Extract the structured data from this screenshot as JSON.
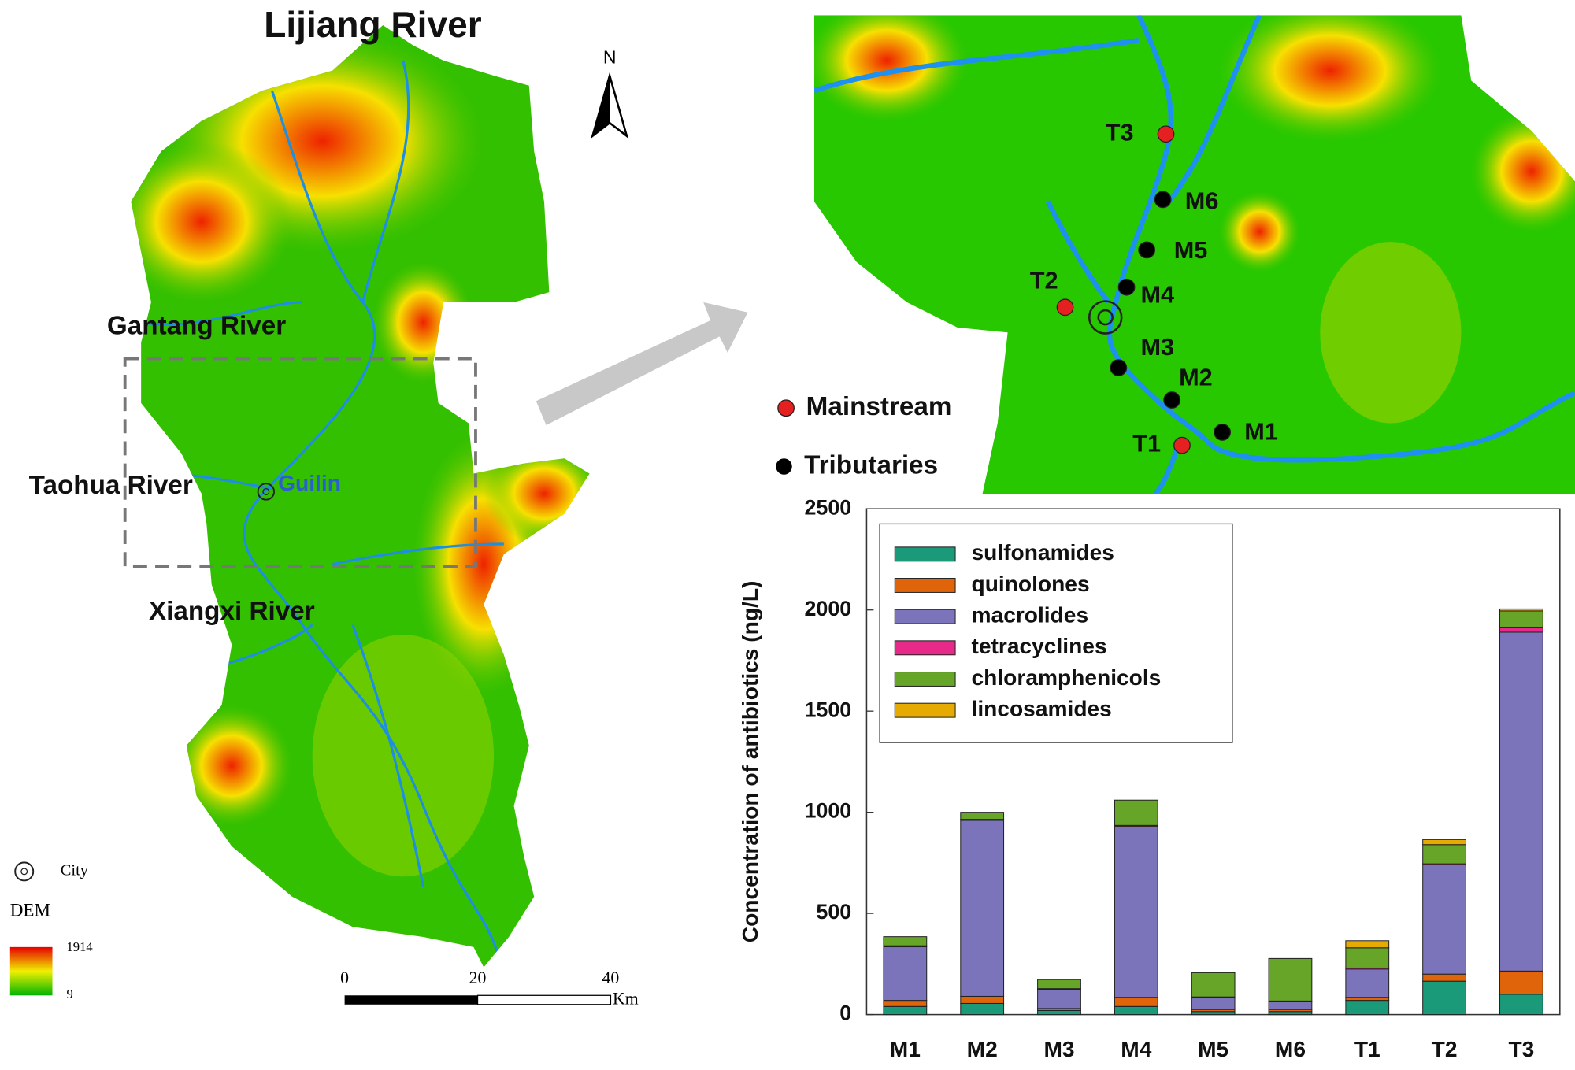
{
  "map": {
    "title": "Lijiang River",
    "north": "N",
    "rivers": [
      "Gantang River",
      "Taohua River",
      "Xiangxi River"
    ],
    "city_name": "Guilin",
    "legend": {
      "city": "City",
      "dem": "DEM",
      "dem_max": 1914,
      "dem_min": 9
    },
    "scale_bar": {
      "ticks": [
        0,
        20,
        40
      ],
      "unit": "Km"
    },
    "sites": [
      "T3",
      "M6",
      "M5",
      "M4",
      "T2",
      "M3",
      "M2",
      "T1",
      "M1"
    ],
    "site_legend": {
      "red": "Mainstream",
      "black": "Tributaries"
    }
  },
  "chart_data": {
    "type": "stacked-bar",
    "y_label": "Concentration of antibiotics (ng/L)",
    "categories": [
      "M1",
      "M2",
      "M3",
      "M4",
      "M5",
      "M6",
      "T1",
      "T2",
      "T3"
    ],
    "series": [
      {
        "name": "sulfonamides",
        "color": "#1a9a78",
        "values": [
          40,
          55,
          20,
          40,
          15,
          15,
          70,
          165,
          100
        ]
      },
      {
        "name": "quinolones",
        "color": "#e0640a",
        "values": [
          30,
          35,
          10,
          45,
          10,
          10,
          15,
          35,
          115
        ]
      },
      {
        "name": "macrolides",
        "color": "#7b74bb",
        "values": [
          265,
          870,
          95,
          845,
          60,
          40,
          140,
          540,
          1675
        ]
      },
      {
        "name": "tetracyclines",
        "color": "#e7298a",
        "values": [
          5,
          5,
          3,
          5,
          2,
          2,
          5,
          5,
          25
        ]
      },
      {
        "name": "chloramphenicols",
        "color": "#66a528",
        "values": [
          45,
          35,
          45,
          125,
          120,
          210,
          100,
          95,
          80
        ]
      },
      {
        "name": "lincosamides",
        "color": "#e6ab02",
        "values": [
          0,
          0,
          0,
          0,
          0,
          0,
          35,
          25,
          10
        ]
      }
    ],
    "ylim": [
      0,
      2500
    ],
    "yticks": [
      0,
      500,
      1000,
      1500,
      2000,
      2500
    ],
    "grid": false
  }
}
